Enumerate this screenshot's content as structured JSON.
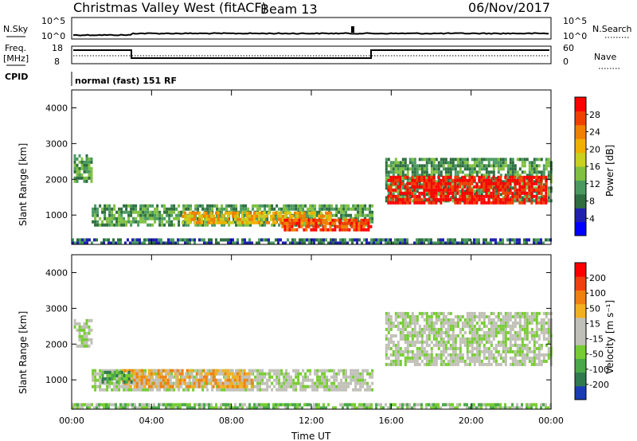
{
  "header": {
    "title": "Christmas Valley West (fitACF)",
    "beam": "Beam 13",
    "date": "06/Nov/2017"
  },
  "top_panels": {
    "nsky": {
      "left_label": "N.Sky",
      "right_label": "N.Search",
      "left_ticks": [
        "10^5",
        "10^0"
      ],
      "right_ticks": [
        "10^5",
        "10^0"
      ]
    },
    "freq": {
      "left_label_1": "Freq.",
      "left_label_2": "[MHz]",
      "left_ticks": [
        "18",
        "8"
      ],
      "right_label": "Nave",
      "right_ticks": [
        "60",
        "0"
      ]
    },
    "cpid": {
      "label": "CPID",
      "mode": "normal (fast) 151 RF"
    }
  },
  "colors": {
    "power": [
      "#0000ff",
      "#2020b0",
      "#2e6e40",
      "#4a9a60",
      "#7fc040",
      "#c8d020",
      "#f0b000",
      "#f08000",
      "#f04000",
      "#ff0000"
    ],
    "velocity": [
      "#1a3cb4",
      "#2f7a4f",
      "#4aa84a",
      "#77cc33",
      "#c0c0b8",
      "#c0c0b8",
      "#f0b020",
      "#f08010",
      "#f04010",
      "#ff0000"
    ]
  },
  "chart_data": [
    {
      "type": "heatmap",
      "name": "power-panel",
      "x": {
        "label": "",
        "range_hours": [
          0,
          24
        ],
        "ticks": [
          "00:00",
          "04:00",
          "08:00",
          "12:00",
          "16:00",
          "20:00",
          "00:00"
        ]
      },
      "y": {
        "label": "Slant Range [km]",
        "range": [
          180,
          4500
        ],
        "ticks": [
          1000,
          2000,
          3000,
          4000
        ]
      },
      "colorbar": {
        "label": "Power [dB]",
        "ticks": [
          "4",
          "8",
          "12",
          "16",
          "20",
          "24",
          "28"
        ]
      },
      "regions": [
        {
          "t": [
            0.1,
            1.0
          ],
          "r": [
            1900,
            2700
          ],
          "level": 3
        },
        {
          "t": [
            1.0,
            15.0
          ],
          "r": [
            700,
            1300
          ],
          "level": 3
        },
        {
          "t": [
            5.5,
            13.0
          ],
          "r": [
            800,
            1100
          ],
          "level": 6
        },
        {
          "t": [
            10.5,
            15.0
          ],
          "r": [
            600,
            900
          ],
          "level": 8
        },
        {
          "t": [
            15.7,
            24.0
          ],
          "r": [
            1400,
            2600
          ],
          "level": 3
        },
        {
          "t": [
            15.8,
            23.8
          ],
          "r": [
            1300,
            2100
          ],
          "level": 9
        },
        {
          "t": [
            0.0,
            24.0
          ],
          "r": [
            180,
            350
          ],
          "level": 2
        }
      ]
    },
    {
      "type": "heatmap",
      "name": "velocity-panel",
      "x": {
        "label": "Time UT",
        "range_hours": [
          0,
          24
        ],
        "ticks": [
          "00:00",
          "04:00",
          "08:00",
          "12:00",
          "16:00",
          "20:00",
          "00:00"
        ]
      },
      "y": {
        "label": "Slant Range [km]",
        "range": [
          180,
          4500
        ],
        "ticks": [
          1000,
          2000,
          3000,
          4000
        ]
      },
      "colorbar": {
        "label": "Velocity [m s⁻¹]",
        "ticks": [
          "200",
          "100",
          "50",
          "15",
          "-15",
          "-50",
          "-100",
          "-200"
        ]
      },
      "regions": [
        {
          "t": [
            0.1,
            1.0
          ],
          "r": [
            1900,
            2700
          ],
          "level": 4
        },
        {
          "t": [
            1.0,
            15.0
          ],
          "r": [
            700,
            1300
          ],
          "level": 4
        },
        {
          "t": [
            2.5,
            9.0
          ],
          "r": [
            850,
            1300
          ],
          "level": 6
        },
        {
          "t": [
            1.5,
            3.0
          ],
          "r": [
            950,
            1250
          ],
          "level": 2
        },
        {
          "t": [
            15.7,
            24.0
          ],
          "r": [
            1400,
            2900
          ],
          "level": 4
        },
        {
          "t": [
            0.0,
            24.0
          ],
          "r": [
            180,
            350
          ],
          "level": 3
        }
      ]
    }
  ]
}
